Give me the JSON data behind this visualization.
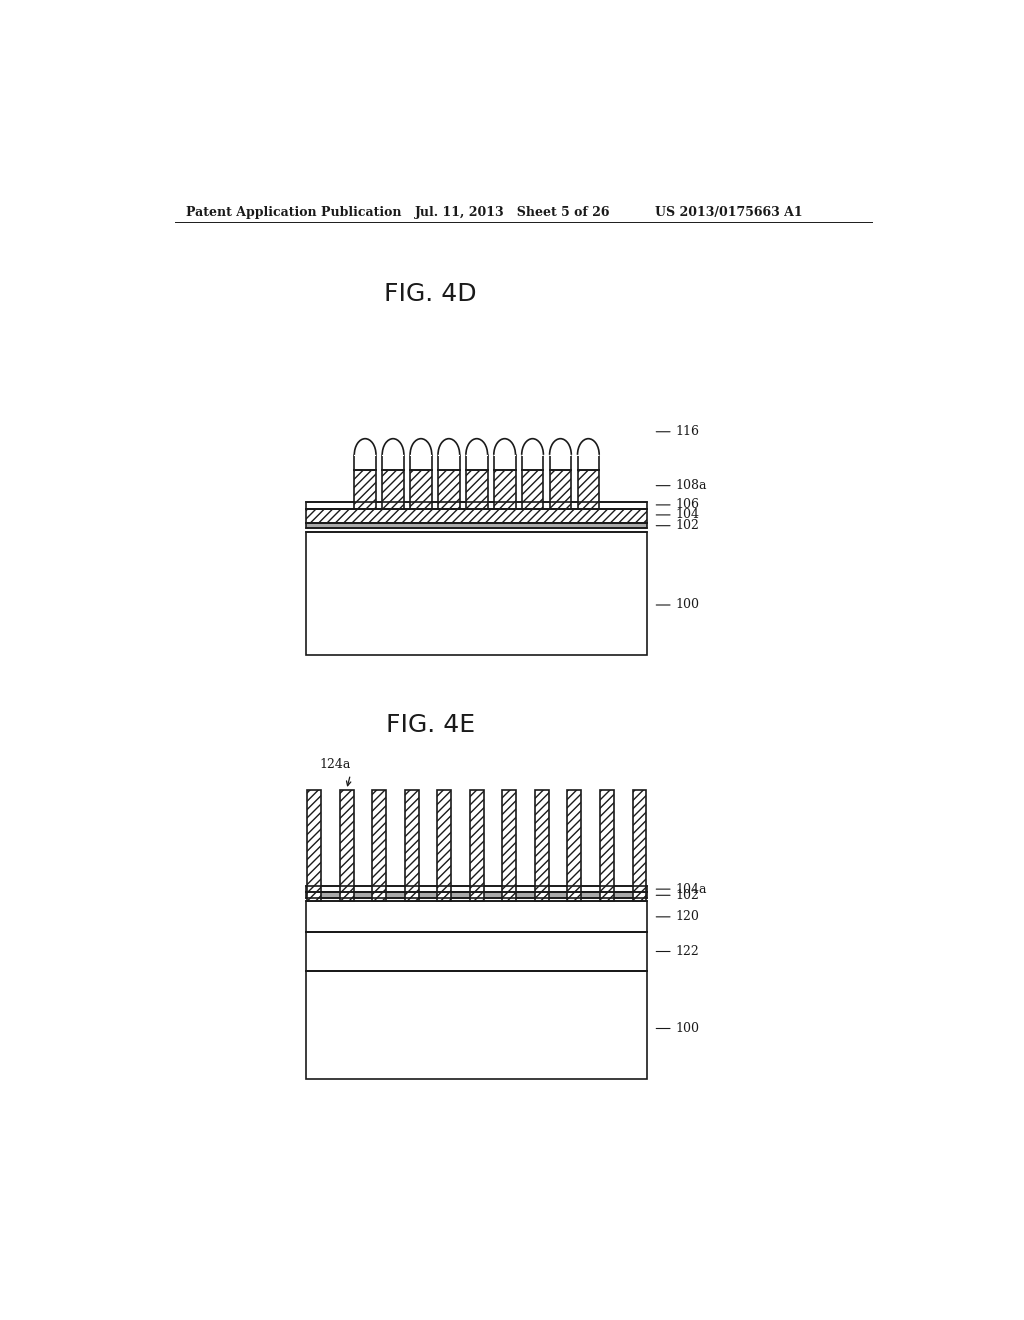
{
  "bg_color": "#ffffff",
  "header_left": "Patent Application Publication",
  "header_mid": "Jul. 11, 2013   Sheet 5 of 26",
  "header_right": "US 2013/0175663 A1",
  "fig4d_title": "FIG. 4D",
  "fig4e_title": "FIG. 4E",
  "fig4d_labels": [
    "116",
    "108a",
    "106",
    "104",
    "102",
    "100"
  ],
  "fig4e_labels": [
    "124a",
    "104a",
    "102",
    "120",
    "122",
    "100"
  ],
  "label_fontsize": 9,
  "title_fontsize": 18,
  "header_fontsize": 9,
  "lw": 1.2,
  "black": "#1a1a1a"
}
